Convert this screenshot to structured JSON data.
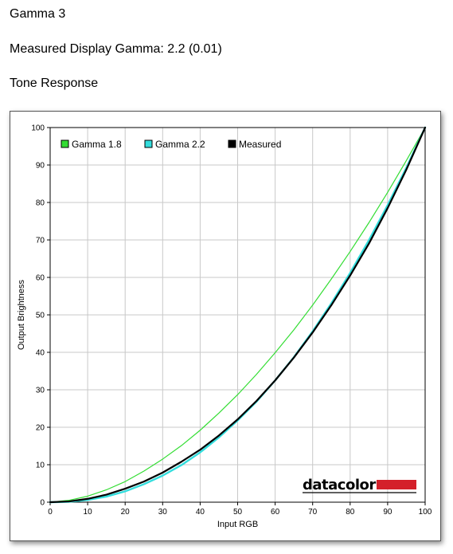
{
  "page": {
    "title": "Gamma 3",
    "measured_gamma": "Measured Display Gamma: 2.2 (0.01)",
    "section": "Tone Response",
    "logo_text": "datacolor"
  },
  "colors": {
    "gamma18": "#33dd33",
    "gamma22": "#33dddd",
    "measured": "#000000",
    "grid": "#c8c8c8",
    "logo_bar": "#d4202a"
  },
  "chart_data": {
    "type": "line",
    "xlabel": "Input RGB",
    "ylabel": "Output Brightness",
    "xlim": [
      0,
      100
    ],
    "ylim": [
      0,
      100
    ],
    "xticks": [
      0,
      10,
      20,
      30,
      40,
      50,
      60,
      70,
      80,
      90,
      100
    ],
    "yticks": [
      0,
      10,
      20,
      30,
      40,
      50,
      60,
      70,
      80,
      90,
      100
    ],
    "grid": true,
    "legend_position": "top-left",
    "x": [
      0,
      5,
      10,
      15,
      20,
      25,
      30,
      35,
      40,
      45,
      50,
      55,
      60,
      65,
      70,
      75,
      80,
      85,
      90,
      95,
      100
    ],
    "series": [
      {
        "name": "Gamma 1.8",
        "color_key": "gamma18",
        "values": [
          0,
          0.5,
          1.6,
          3.3,
          5.5,
          8.3,
          11.5,
          15.1,
          19.2,
          23.8,
          28.7,
          34.1,
          39.9,
          46.0,
          52.6,
          59.6,
          66.9,
          74.6,
          82.7,
          91.2,
          100
        ]
      },
      {
        "name": "Gamma 2.2",
        "color_key": "gamma22",
        "values": [
          0,
          0.1,
          0.6,
          1.5,
          2.9,
          4.8,
          7.1,
          9.9,
          13.3,
          17.3,
          21.8,
          26.8,
          32.5,
          38.7,
          45.6,
          53.1,
          61.2,
          69.9,
          79.3,
          89.3,
          100
        ]
      },
      {
        "name": "Measured",
        "color_key": "measured",
        "values": [
          0,
          0.2,
          0.9,
          2.0,
          3.6,
          5.5,
          7.9,
          10.8,
          14.0,
          17.8,
          22.1,
          27.0,
          32.5,
          38.6,
          45.3,
          52.6,
          60.5,
          69.0,
          78.5,
          88.8,
          100
        ]
      }
    ]
  }
}
